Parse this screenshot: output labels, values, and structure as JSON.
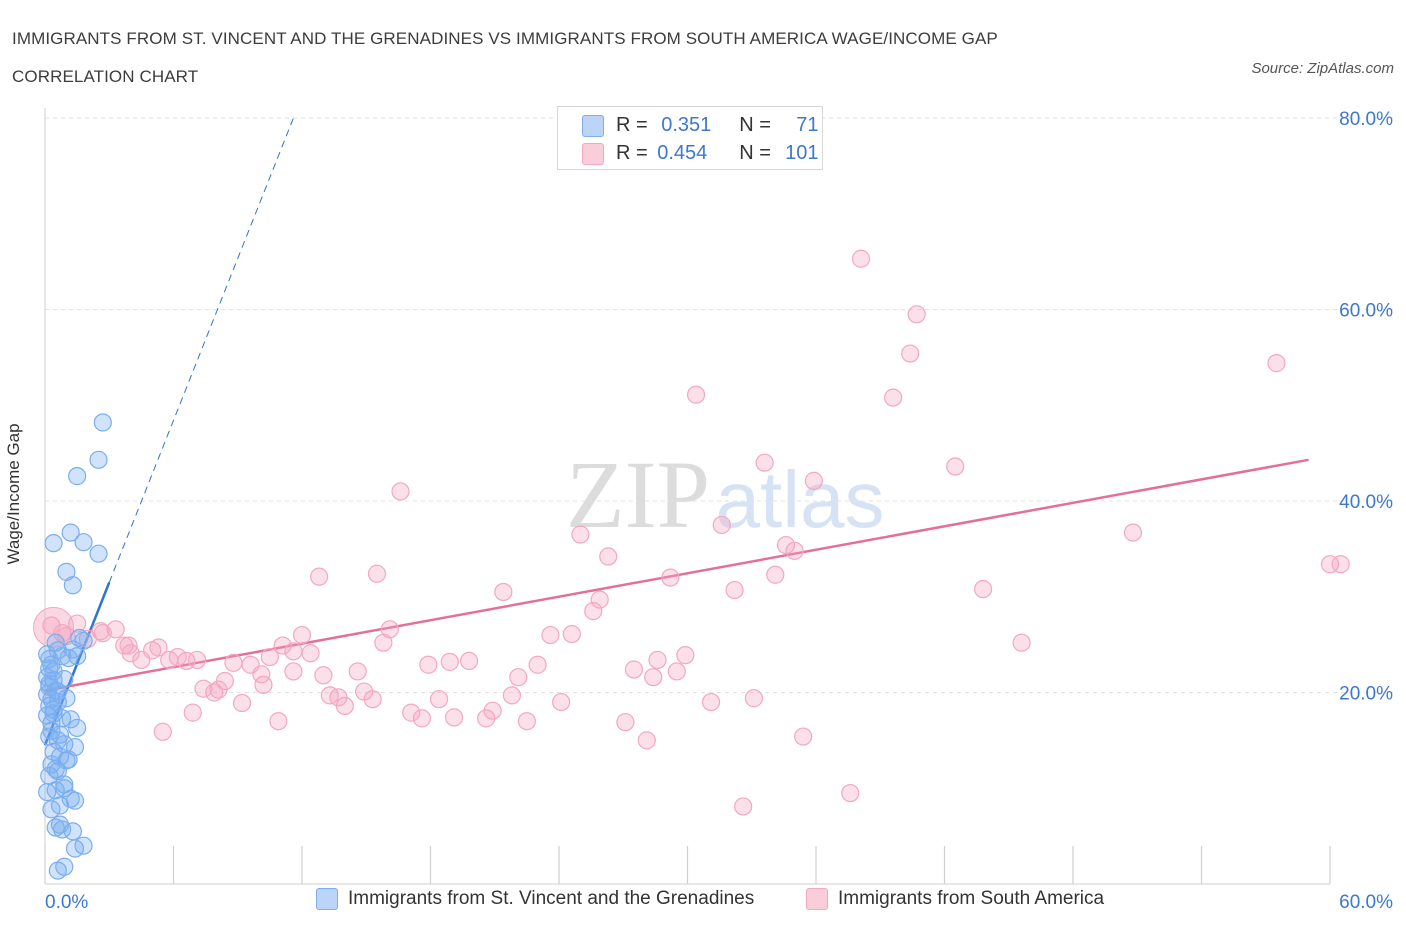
{
  "title_line1": "IMMIGRANTS FROM ST. VINCENT AND THE GRENADINES VS IMMIGRANTS FROM SOUTH AMERICA WAGE/INCOME GAP",
  "title_line2": "CORRELATION CHART",
  "source": "Source: ZipAtlas.com",
  "watermark": "ZIPatlas",
  "chart_data": {
    "type": "scatter",
    "ylabel": "Wage/Income Gap",
    "xlim": [
      0,
      60
    ],
    "ylim": [
      0,
      80
    ],
    "x_tick_labels": [
      "0.0%",
      "60.0%"
    ],
    "y_ticks": [
      20,
      40,
      60,
      80
    ],
    "y_tick_labels": [
      "20.0%",
      "40.0%",
      "60.0%",
      "80.0%"
    ],
    "grid": "horizontal dashed",
    "legend_top": [
      {
        "r_label": "R = ",
        "r_value": "0.351",
        "n_label": "N = ",
        "n_value": "71"
      },
      {
        "r_label": "R = ",
        "r_value": "0.454",
        "n_label": "N = ",
        "n_value": "101"
      }
    ],
    "series": [
      {
        "name": "Immigrants from St. Vincent and the Grenadines",
        "color": "#7aaef0",
        "line_color": "#2f74d0",
        "trend_solid": [
          [
            0.0,
            14.5
          ],
          [
            3.0,
            31.5
          ]
        ],
        "trend_dashed": [
          [
            3.0,
            31.5
          ],
          [
            11.6,
            80.0
          ]
        ],
        "points": [
          [
            0.1,
            24.0
          ],
          [
            0.2,
            23.5
          ],
          [
            0.3,
            22.9
          ],
          [
            0.1,
            21.6
          ],
          [
            0.4,
            21.3
          ],
          [
            0.2,
            20.6
          ],
          [
            0.5,
            20.2
          ],
          [
            0.1,
            19.8
          ],
          [
            0.3,
            19.3
          ],
          [
            0.6,
            19.0
          ],
          [
            0.2,
            18.6
          ],
          [
            0.4,
            17.8
          ],
          [
            0.8,
            17.3
          ],
          [
            1.2,
            17.2
          ],
          [
            0.3,
            16.8
          ],
          [
            1.5,
            16.3
          ],
          [
            0.2,
            15.4
          ],
          [
            0.6,
            15.0
          ],
          [
            0.9,
            14.6
          ],
          [
            1.4,
            14.3
          ],
          [
            0.4,
            13.8
          ],
          [
            0.7,
            13.3
          ],
          [
            1.0,
            12.9
          ],
          [
            0.3,
            12.5
          ],
          [
            0.6,
            11.8
          ],
          [
            0.2,
            11.3
          ],
          [
            0.9,
            10.0
          ],
          [
            0.5,
            9.8
          ],
          [
            1.2,
            8.9
          ],
          [
            1.4,
            8.7
          ],
          [
            0.7,
            8.2
          ],
          [
            0.5,
            5.9
          ],
          [
            0.8,
            5.7
          ],
          [
            1.3,
            5.5
          ],
          [
            1.8,
            4.0
          ],
          [
            0.9,
            1.8
          ],
          [
            0.6,
            1.4
          ],
          [
            1.4,
            3.7
          ],
          [
            2.7,
            48.2
          ],
          [
            2.5,
            44.3
          ],
          [
            1.5,
            42.6
          ],
          [
            1.2,
            36.7
          ],
          [
            0.4,
            35.6
          ],
          [
            1.8,
            35.7
          ],
          [
            2.5,
            34.5
          ],
          [
            1.0,
            32.6
          ],
          [
            1.3,
            31.2
          ],
          [
            1.6,
            25.7
          ],
          [
            1.3,
            24.5
          ],
          [
            0.5,
            25.2
          ],
          [
            0.8,
            23.8
          ],
          [
            1.1,
            23.6
          ],
          [
            0.4,
            22.2
          ],
          [
            0.9,
            21.4
          ],
          [
            0.2,
            20.9
          ],
          [
            0.6,
            20.1
          ],
          [
            1.0,
            19.4
          ],
          [
            0.4,
            18.2
          ],
          [
            0.1,
            17.6
          ],
          [
            0.3,
            16.0
          ],
          [
            0.7,
            15.6
          ],
          [
            1.1,
            13.0
          ],
          [
            0.5,
            12.0
          ],
          [
            0.9,
            10.4
          ],
          [
            0.1,
            9.6
          ],
          [
            0.3,
            7.8
          ],
          [
            0.7,
            6.2
          ],
          [
            0.2,
            22.5
          ],
          [
            1.5,
            23.8
          ],
          [
            0.6,
            24.4
          ],
          [
            1.8,
            25.4
          ]
        ]
      },
      {
        "name": "Immigrants from South America",
        "color": "#f4a7c0",
        "line_color": "#e2709a",
        "trend_solid": [
          [
            0.0,
            20.2
          ],
          [
            59.0,
            44.3
          ]
        ],
        "points": [
          [
            0.3,
            27.0
          ],
          [
            0.8,
            26.2
          ],
          [
            1.5,
            27.2
          ],
          [
            2.0,
            25.6
          ],
          [
            2.6,
            26.4
          ],
          [
            3.3,
            26.6
          ],
          [
            3.7,
            24.9
          ],
          [
            4.0,
            24.1
          ],
          [
            4.5,
            23.4
          ],
          [
            5.0,
            24.4
          ],
          [
            5.3,
            24.7
          ],
          [
            5.8,
            23.4
          ],
          [
            6.2,
            23.7
          ],
          [
            6.6,
            23.3
          ],
          [
            7.1,
            23.4
          ],
          [
            7.4,
            20.4
          ],
          [
            7.9,
            20.0
          ],
          [
            8.4,
            21.2
          ],
          [
            8.8,
            23.1
          ],
          [
            9.2,
            18.9
          ],
          [
            9.6,
            22.9
          ],
          [
            10.1,
            21.9
          ],
          [
            10.5,
            23.7
          ],
          [
            10.9,
            17.0
          ],
          [
            11.1,
            24.9
          ],
          [
            11.6,
            22.2
          ],
          [
            12.0,
            26.0
          ],
          [
            12.4,
            24.1
          ],
          [
            13.0,
            21.8
          ],
          [
            13.3,
            19.7
          ],
          [
            13.7,
            19.5
          ],
          [
            14.0,
            18.6
          ],
          [
            14.6,
            22.2
          ],
          [
            14.9,
            20.1
          ],
          [
            15.3,
            19.3
          ],
          [
            15.8,
            25.2
          ],
          [
            16.1,
            26.6
          ],
          [
            16.6,
            41.0
          ],
          [
            17.1,
            17.9
          ],
          [
            17.6,
            17.3
          ],
          [
            17.9,
            22.9
          ],
          [
            18.4,
            19.3
          ],
          [
            19.1,
            17.4
          ],
          [
            19.8,
            23.3
          ],
          [
            20.6,
            17.3
          ],
          [
            20.9,
            18.1
          ],
          [
            21.4,
            30.5
          ],
          [
            21.8,
            19.7
          ],
          [
            22.1,
            21.6
          ],
          [
            22.5,
            17.0
          ],
          [
            23.0,
            22.9
          ],
          [
            23.6,
            26.0
          ],
          [
            24.1,
            19.0
          ],
          [
            24.6,
            26.1
          ],
          [
            25.0,
            36.5
          ],
          [
            25.6,
            28.5
          ],
          [
            25.9,
            29.7
          ],
          [
            26.3,
            34.2
          ],
          [
            27.1,
            16.9
          ],
          [
            27.5,
            22.4
          ],
          [
            28.1,
            15.0
          ],
          [
            28.6,
            23.4
          ],
          [
            29.2,
            32.0
          ],
          [
            29.5,
            22.2
          ],
          [
            29.9,
            23.9
          ],
          [
            30.4,
            51.1
          ],
          [
            31.1,
            19.0
          ],
          [
            31.6,
            37.5
          ],
          [
            32.2,
            30.7
          ],
          [
            32.6,
            8.1
          ],
          [
            33.1,
            19.4
          ],
          [
            33.6,
            44.0
          ],
          [
            34.1,
            32.3
          ],
          [
            34.6,
            35.4
          ],
          [
            35.0,
            34.8
          ],
          [
            35.4,
            15.4
          ],
          [
            35.9,
            42.1
          ],
          [
            37.6,
            9.5
          ],
          [
            38.1,
            65.3
          ],
          [
            39.6,
            50.8
          ],
          [
            40.4,
            55.4
          ],
          [
            40.7,
            59.5
          ],
          [
            42.5,
            43.6
          ],
          [
            43.8,
            30.8
          ],
          [
            45.6,
            25.2
          ],
          [
            50.8,
            36.7
          ],
          [
            57.5,
            54.4
          ],
          [
            60.0,
            33.4
          ],
          [
            60.5,
            33.4
          ],
          [
            5.5,
            15.9
          ],
          [
            6.9,
            17.9
          ],
          [
            12.8,
            32.1
          ],
          [
            15.5,
            32.4
          ],
          [
            10.2,
            20.8
          ],
          [
            18.9,
            23.2
          ],
          [
            3.9,
            24.9
          ],
          [
            8.1,
            20.3
          ],
          [
            11.6,
            24.3
          ],
          [
            28.4,
            21.6
          ],
          [
            2.7,
            26.2
          ],
          [
            1.0,
            25.9
          ]
        ]
      }
    ]
  },
  "legend_bottom": [
    {
      "label": "Immigrants from St. Vincent and the Grenadines"
    },
    {
      "label": "Immigrants from South America"
    }
  ]
}
